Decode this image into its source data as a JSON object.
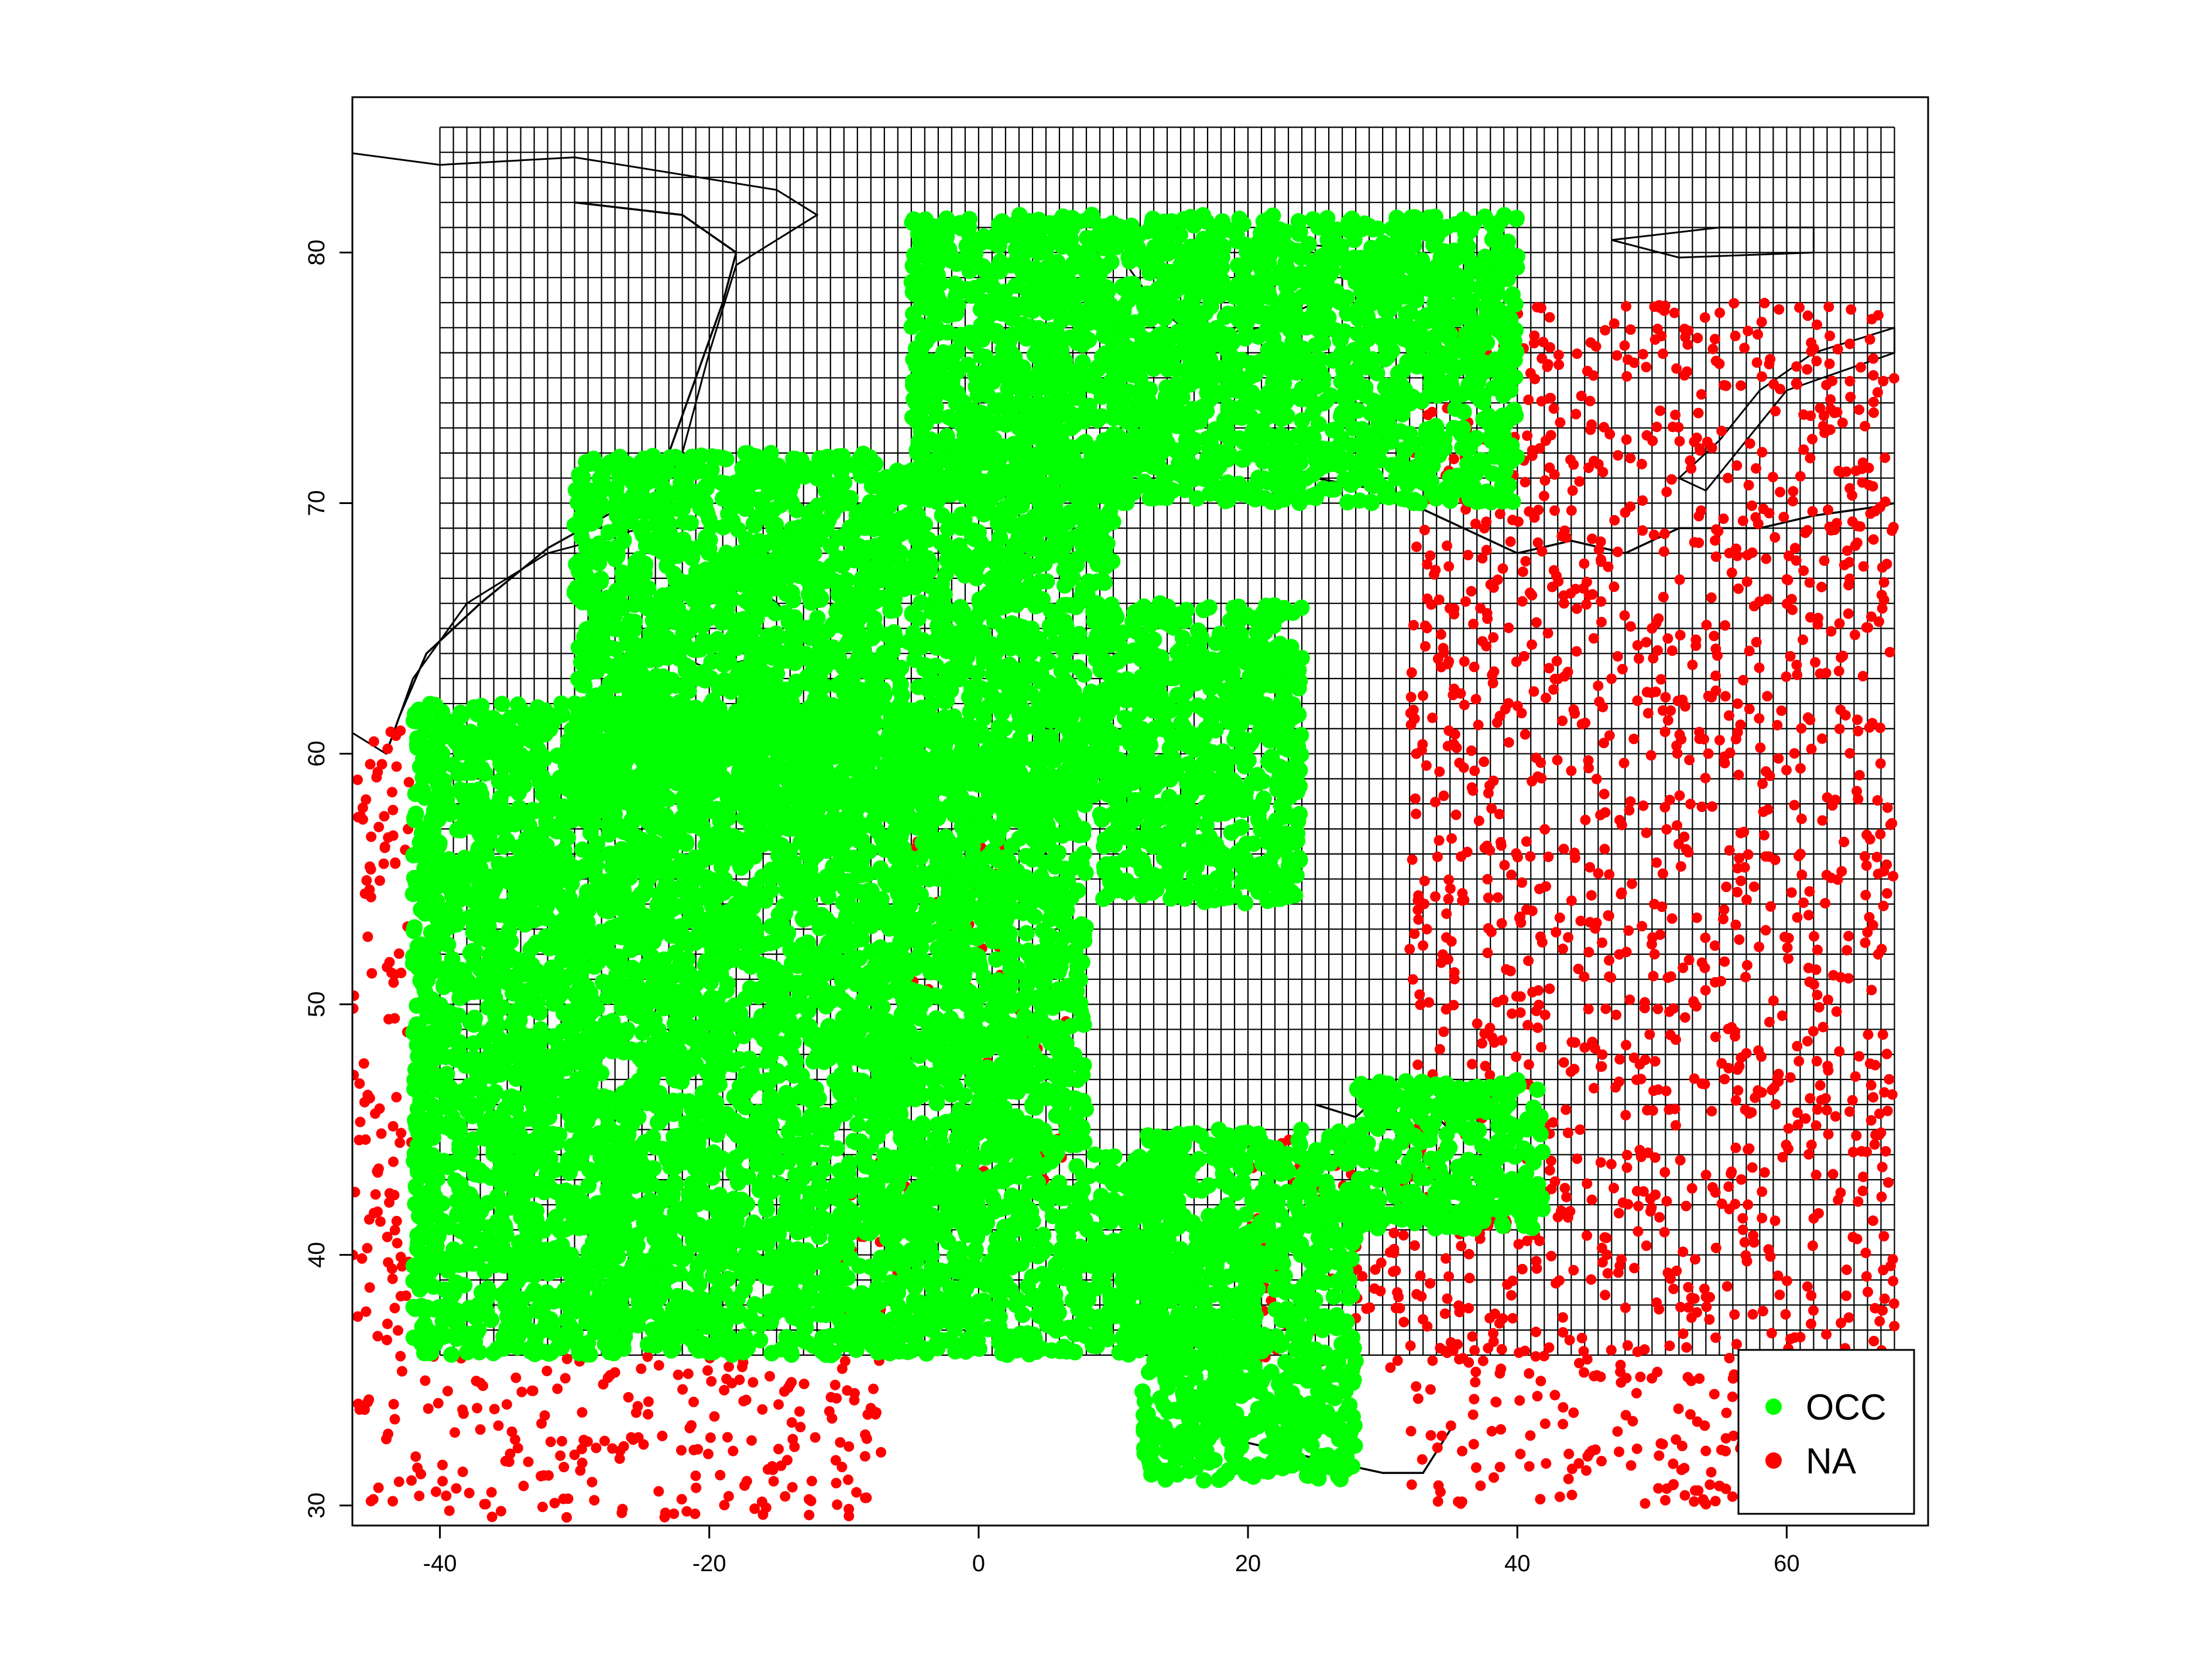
{
  "chart_data": {
    "type": "scatter",
    "xlim": [
      -46.5,
      70.5
    ],
    "ylim": [
      29.2,
      86.2
    ],
    "x_ticks": [
      -40,
      -20,
      0,
      20,
      40,
      60
    ],
    "x_tick_labels": [
      "-40",
      "-20",
      "0",
      "20",
      "40",
      "60"
    ],
    "y_ticks": [
      30,
      40,
      50,
      60,
      70,
      80
    ],
    "y_tick_labels": [
      "30",
      "40",
      "50",
      "60",
      "70",
      "80"
    ],
    "grid_region": {
      "lon": [
        -40,
        68
      ],
      "lat": [
        36,
        85
      ]
    },
    "grid_step_deg": 1,
    "legend_position": "bottom-right",
    "colors": {
      "OCC": "#00ff00",
      "NA": "#ff0000",
      "grid": "#000000",
      "coast": "#000000"
    },
    "series": [
      {
        "name": "OCC",
        "color": "#00ff00",
        "regions": [
          {
            "lon": [
              -42,
              -5
            ],
            "lat": [
              36,
              62
            ]
          },
          {
            "lon": [
              -30,
              10
            ],
            "lat": [
              58,
              72
            ]
          },
          {
            "lon": [
              -5,
              40
            ],
            "lat": [
              70,
              81.5
            ]
          },
          {
            "lon": [
              -6,
              8
            ],
            "lat": [
              44,
              60
            ]
          },
          {
            "lon": [
              -5,
              15
            ],
            "lat": [
              36,
              44
            ]
          },
          {
            "lon": [
              12,
              28
            ],
            "lat": [
              31,
              45
            ]
          },
          {
            "lon": [
              28,
              42
            ],
            "lat": [
              41,
              47
            ]
          },
          {
            "lon": [
              9,
              24
            ],
            "lat": [
              54,
              66
            ]
          }
        ]
      },
      {
        "name": "NA",
        "color": "#ff0000",
        "regions": [
          {
            "lon": [
              -46.5,
              -42
            ],
            "lat": [
              30,
              61
            ]
          },
          {
            "lon": [
              -42,
              -7
            ],
            "lat": [
              29.5,
              36
            ]
          },
          {
            "lon": [
              -10,
              -5
            ],
            "lat": [
              36,
              44
            ]
          },
          {
            "lon": [
              -1,
              7
            ],
            "lat": [
              43,
              51
            ]
          },
          {
            "lon": [
              -5,
              2
            ],
            "lat": [
              50,
              58
            ]
          },
          {
            "lon": [
              20,
              32
            ],
            "lat": [
              35,
              45
            ]
          },
          {
            "lon": [
              32,
              68
            ],
            "lat": [
              30,
              78
            ]
          }
        ]
      }
    ]
  },
  "legend": {
    "items": [
      {
        "label": "OCC",
        "color": "#00ff00"
      },
      {
        "label": "NA",
        "color": "#ff0000"
      }
    ]
  }
}
